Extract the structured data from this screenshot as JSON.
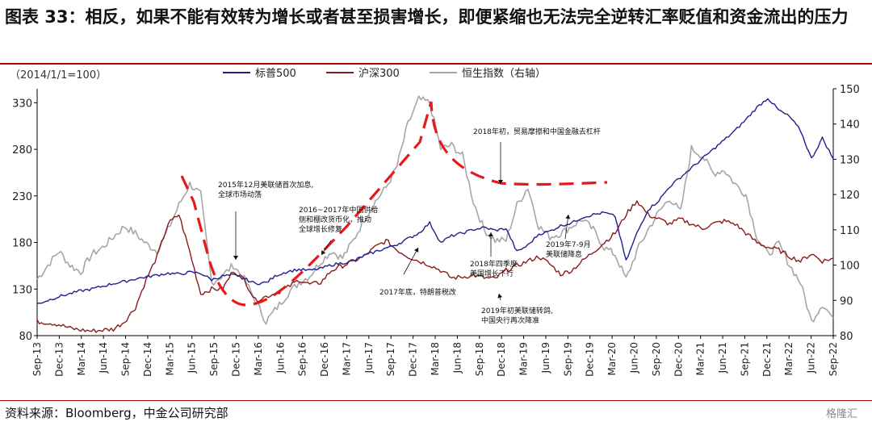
{
  "title": "图表 33：相反，如果不能有效转为增长或者甚至损害增长，即便紧缩也无法完全逆转汇率贬值和资金流出的压力",
  "baseline_note": "（2014/1/1=100）",
  "source": "资料来源：Bloomberg，中金公司研究部",
  "watermark": "格隆汇",
  "colors": {
    "sp500": "#1f1f8f",
    "hs300": "#8b1a1a",
    "hsi": "#a6a6a6",
    "trend": "#e8191a",
    "rule": "#b30000"
  },
  "chart_data": {
    "type": "line",
    "title": "图表 33：相反，如果不能有效转为增长或者甚至损害增长，即便紧缩也无法完全逆转汇率贬值和资金流出的压力",
    "left_axis": {
      "ylim": [
        80,
        345
      ],
      "ticks": [
        80,
        130,
        180,
        230,
        280,
        330
      ]
    },
    "right_axis": {
      "ylim": [
        80,
        150
      ],
      "ticks": [
        80,
        90,
        100,
        110,
        120,
        130,
        140,
        150
      ]
    },
    "x_ticks": [
      "Sep-13",
      "Dec-13",
      "Mar-14",
      "Jun-14",
      "Sep-14",
      "Dec-14",
      "Mar-15",
      "Jun-15",
      "Sep-15",
      "Dec-15",
      "Mar-16",
      "Jun-16",
      "Sep-16",
      "Dec-16",
      "Mar-17",
      "Jun-17",
      "Sep-17",
      "Dec-17",
      "Mar-18",
      "Jun-18",
      "Sep-18",
      "Dec-18",
      "Mar-19",
      "Jun-19",
      "Sep-19",
      "Dec-19",
      "Mar-20",
      "Jun-20",
      "Sep-20",
      "Dec-20",
      "Mar-21",
      "Jun-21",
      "Sep-21",
      "Dec-21",
      "Mar-22",
      "Jun-22",
      "Sep-22"
    ],
    "grid": false,
    "legend_position": "top",
    "series": [
      {
        "name": "标普500",
        "axis": "left",
        "values": [
          114,
          118,
          122,
          125,
          128,
          130,
          133,
          136,
          138,
          141,
          143,
          145,
          147,
          146,
          148,
          147,
          140,
          144,
          145,
          141,
          136,
          137,
          145,
          149,
          151,
          150,
          152,
          156,
          158,
          160,
          166,
          170,
          174,
          178,
          184,
          190,
          201,
          180,
          187,
          190,
          194,
          196,
          193,
          195,
          170,
          177,
          189,
          192,
          198,
          201,
          207,
          210,
          212,
          208,
          160,
          190,
          215,
          225,
          240,
          250,
          260,
          270,
          280,
          290,
          300,
          312,
          325,
          335,
          322,
          315,
          300,
          270,
          292,
          270
        ]
      },
      {
        "name": "沪深300",
        "axis": "left",
        "values": [
          95,
          94,
          92,
          88,
          86,
          85,
          86,
          87,
          95,
          110,
          140,
          165,
          200,
          210,
          170,
          125,
          130,
          130,
          150,
          140,
          118,
          122,
          126,
          132,
          140,
          135,
          137,
          150,
          155,
          160,
          165,
          175,
          182,
          172,
          165,
          160,
          156,
          150,
          142,
          143,
          145,
          142,
          141,
          150,
          155,
          160,
          165,
          157,
          146,
          150,
          160,
          170,
          180,
          190,
          210,
          225,
          210,
          205,
          200,
          205,
          200,
          195,
          200,
          203,
          200,
          190,
          180,
          175,
          172,
          165,
          160,
          168,
          160,
          163
        ]
      },
      {
        "name": "恒生指数（右轴）",
        "axis": "right",
        "values": [
          96,
          100,
          104,
          100,
          98,
          103,
          105,
          108,
          111,
          109,
          106,
          104,
          110,
          117,
          123,
          120,
          95,
          97,
          100,
          96,
          90,
          84,
          88,
          92,
          95,
          97,
          101,
          104,
          102,
          107,
          113,
          118,
          122,
          128,
          140,
          147,
          146,
          133,
          134,
          131,
          118,
          110,
          107,
          107,
          117,
          122,
          111,
          108,
          109,
          111,
          113,
          110,
          105,
          103,
          96,
          104,
          110,
          115,
          119,
          115,
          133,
          131,
          126,
          127,
          123,
          120,
          108,
          103,
          106,
          100,
          95,
          84,
          89,
          85
        ]
      }
    ],
    "annotations": [
      {
        "text": [
          "2015年12月美联储首次加息,",
          "全球市场动荡"
        ]
      },
      {
        "text": [
          "2016~2017年中国供给",
          "侧和棚改货币化，推动",
          "全球增长修复"
        ]
      },
      {
        "text": [
          "2017年底，特朗普税改"
        ]
      },
      {
        "text": [
          "2018年初，贸易摩擦和中国金融去杠杆"
        ]
      },
      {
        "text": [
          "2018年四季度",
          "美国增长下行"
        ]
      },
      {
        "text": [
          "2019年初美联储转鸽,",
          "中国央行再次降准"
        ]
      },
      {
        "text": [
          "2019年7-9月",
          "美联储降息"
        ]
      }
    ]
  }
}
